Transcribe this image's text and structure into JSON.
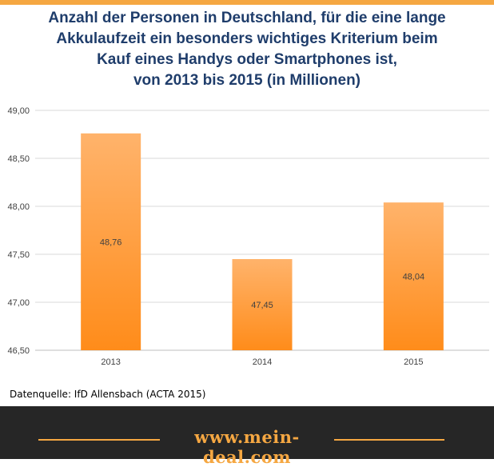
{
  "chart_data": {
    "type": "bar",
    "title_lines": [
      "Anzahl der Personen in Deutschland,  für die eine lange",
      "Akkulaufzeit ein besonders wichtiges Kriterium beim",
      "Kauf eines Handys oder Smartphones ist,",
      "von 2013 bis 2015 (in Millionen)"
    ],
    "categories": [
      "2013",
      "2014",
      "2015"
    ],
    "values": [
      48.76,
      47.45,
      48.04
    ],
    "value_labels": [
      "48,76",
      "47,45",
      "48,04"
    ],
    "ylim": [
      46.5,
      49.0
    ],
    "yticks": [
      46.5,
      47.0,
      47.5,
      48.0,
      48.5,
      49.0
    ],
    "ytick_labels": [
      "46,50",
      "47,00",
      "47,50",
      "48,00",
      "48,50",
      "49,00"
    ],
    "xlabel": "",
    "ylabel": "",
    "grid": true,
    "bar_color_top": "#ffb36b",
    "bar_color_bottom": "#ff8c1a"
  },
  "source": "Datenquelle: IfD Allensbach (ACTA 2015)",
  "footer": {
    "url": "www.mein-deal.com",
    "accent_color": "#f5a742"
  }
}
